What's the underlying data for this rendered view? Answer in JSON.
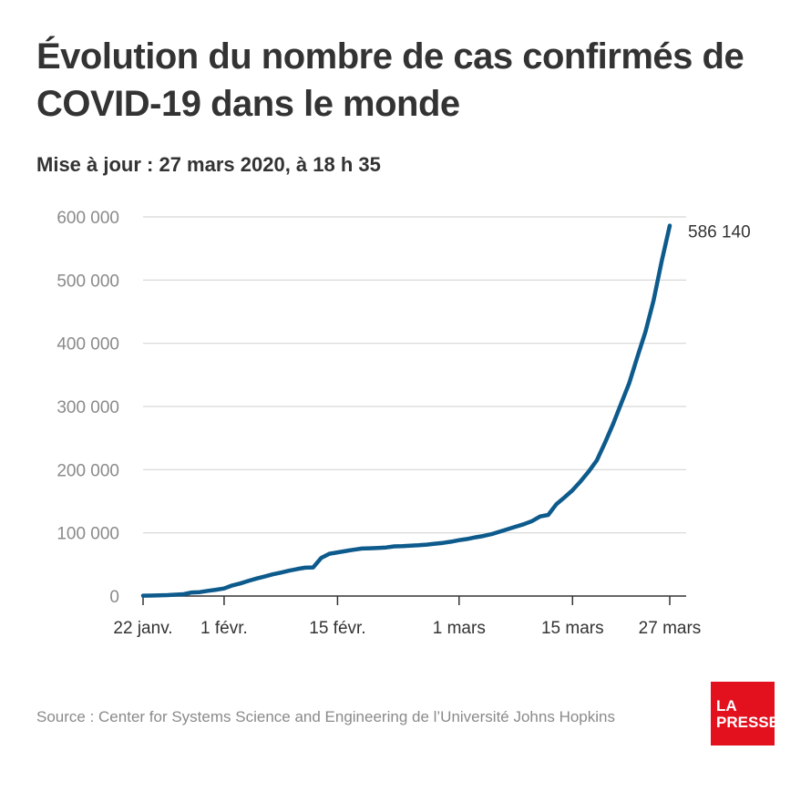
{
  "header": {
    "title": "Évolution du nombre de cas confirmés de COVID-19 dans le monde",
    "subtitle": "Mise à jour : 27 mars 2020, à 18 h 35"
  },
  "footer": {
    "source": "Source : Center for Systems Science and Engineering de l’Université Johns Hopkins",
    "logo_line1": "LA",
    "logo_line2": "PRESSE"
  },
  "colors": {
    "line": "#0d5a8c",
    "grid": "#d6d6d6",
    "axis": "#333333",
    "logo_bg": "#e3101e"
  },
  "chart_data": {
    "type": "line",
    "title": "Évolution du nombre de cas confirmés de COVID-19 dans le monde",
    "subtitle": "Mise à jour : 27 mars 2020, à 18 h 35",
    "xlabel": "",
    "ylabel": "",
    "ylim": [
      0,
      600000
    ],
    "xlim": [
      "2020-01-22",
      "2020-03-27"
    ],
    "grid": true,
    "legend": "none",
    "y_ticks": [
      {
        "value": 0,
        "label": "0"
      },
      {
        "value": 100000,
        "label": "100 000"
      },
      {
        "value": 200000,
        "label": "200 000"
      },
      {
        "value": 300000,
        "label": "300 000"
      },
      {
        "value": 400000,
        "label": "400 000"
      },
      {
        "value": 500000,
        "label": "500 000"
      },
      {
        "value": 600000,
        "label": "600 000"
      }
    ],
    "x_ticks": [
      {
        "date": "2020-01-22",
        "label": "22 janv."
      },
      {
        "date": "2020-02-01",
        "label": "1 févr."
      },
      {
        "date": "2020-02-15",
        "label": "15 févr."
      },
      {
        "date": "2020-03-01",
        "label": "1 mars"
      },
      {
        "date": "2020-03-15",
        "label": "15 mars"
      },
      {
        "date": "2020-03-27",
        "label": "27 mars"
      }
    ],
    "end_label": "586 140",
    "series": [
      {
        "x": [
          "2020-01-22",
          "2020-01-23",
          "2020-01-24",
          "2020-01-25",
          "2020-01-26",
          "2020-01-27",
          "2020-01-28",
          "2020-01-29",
          "2020-01-30",
          "2020-01-31",
          "2020-02-01",
          "2020-02-02",
          "2020-02-03",
          "2020-02-04",
          "2020-02-05",
          "2020-02-06",
          "2020-02-07",
          "2020-02-08",
          "2020-02-09",
          "2020-02-10",
          "2020-02-11",
          "2020-02-12",
          "2020-02-13",
          "2020-02-14",
          "2020-02-15",
          "2020-02-16",
          "2020-02-17",
          "2020-02-18",
          "2020-02-19",
          "2020-02-20",
          "2020-02-21",
          "2020-02-22",
          "2020-02-23",
          "2020-02-24",
          "2020-02-25",
          "2020-02-26",
          "2020-02-27",
          "2020-02-28",
          "2020-02-29",
          "2020-03-01",
          "2020-03-02",
          "2020-03-03",
          "2020-03-04",
          "2020-03-05",
          "2020-03-06",
          "2020-03-07",
          "2020-03-08",
          "2020-03-09",
          "2020-03-10",
          "2020-03-11",
          "2020-03-12",
          "2020-03-13",
          "2020-03-14",
          "2020-03-15",
          "2020-03-16",
          "2020-03-17",
          "2020-03-18",
          "2020-03-19",
          "2020-03-20",
          "2020-03-21",
          "2020-03-22",
          "2020-03-23",
          "2020-03-24",
          "2020-03-25",
          "2020-03-26",
          "2020-03-27"
        ],
        "y": [
          555,
          654,
          941,
          1434,
          2118,
          2927,
          5578,
          6166,
          8234,
          9927,
          12038,
          16787,
          19881,
          23892,
          27635,
          30794,
          34391,
          37120,
          40150,
          42762,
          44802,
          45221,
          60368,
          66885,
          69030,
          71224,
          73258,
          75136,
          75639,
          76197,
          76819,
          78572,
          78958,
          79561,
          80406,
          81388,
          82746,
          84112,
          86011,
          88369,
          90306,
          92840,
          95120,
          97886,
          101801,
          105847,
          109821,
          113590,
          118620,
          125875,
          128352,
          145205,
          156101,
          167454,
          181574,
          197102,
          214821,
          242570,
          272208,
          304507,
          336953,
          378235,
          418045,
          467653,
          529591,
          586140
        ]
      }
    ]
  }
}
